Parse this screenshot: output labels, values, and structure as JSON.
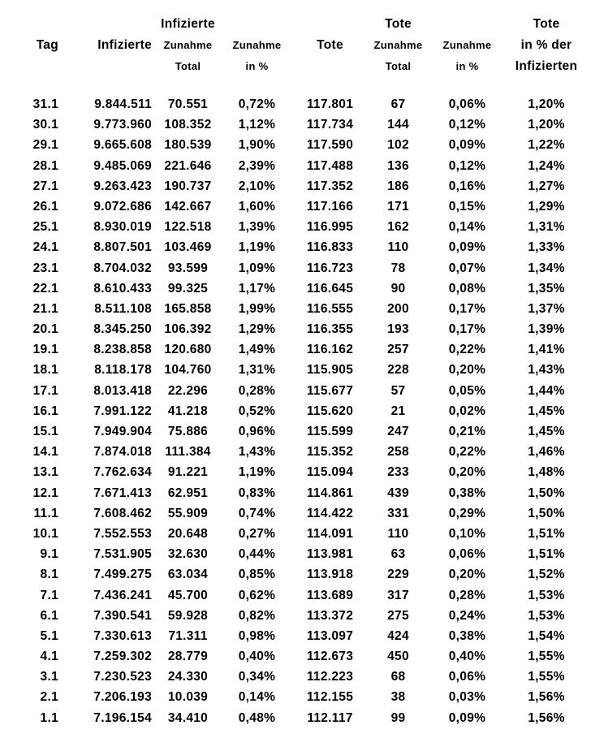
{
  "table": {
    "title_semantic": "covid-infections-deaths-by-day",
    "columns": [
      {
        "id": "tag",
        "header_lines": [
          "",
          "Tag",
          ""
        ]
      },
      {
        "id": "infizierte",
        "header_lines": [
          "",
          "Infizierte",
          ""
        ]
      },
      {
        "id": "infizierte-zunahme-total",
        "header_lines": [
          "Infizierte",
          "Zunahme",
          "Total"
        ]
      },
      {
        "id": "infizierte-zunahme-pct",
        "header_lines": [
          "",
          "Zunahme",
          "in %"
        ]
      },
      {
        "id": "tote",
        "header_lines": [
          "",
          "Tote",
          ""
        ]
      },
      {
        "id": "tote-zunahme-total",
        "header_lines": [
          "Tote",
          "Zunahme",
          "Total"
        ]
      },
      {
        "id": "tote-zunahme-pct",
        "header_lines": [
          "",
          "Zunahme",
          "in %"
        ]
      },
      {
        "id": "tote-pct-der-infizierten",
        "header_lines": [
          "Tote",
          "in % der",
          "Infizierten"
        ]
      }
    ],
    "rows": [
      [
        "31.1",
        "9.844.511",
        "70.551",
        "0,72%",
        "117.801",
        "67",
        "0,06%",
        "1,20%"
      ],
      [
        "30.1",
        "9.773.960",
        "108.352",
        "1,12%",
        "117.734",
        "144",
        "0,12%",
        "1,20%"
      ],
      [
        "29.1",
        "9.665.608",
        "180.539",
        "1,90%",
        "117.590",
        "102",
        "0,09%",
        "1,22%"
      ],
      [
        "28.1",
        "9.485.069",
        "221.646",
        "2,39%",
        "117.488",
        "136",
        "0,12%",
        "1,24%"
      ],
      [
        "27.1",
        "9.263.423",
        "190.737",
        "2,10%",
        "117.352",
        "186",
        "0,16%",
        "1,27%"
      ],
      [
        "26.1",
        "9.072.686",
        "142.667",
        "1,60%",
        "117.166",
        "171",
        "0,15%",
        "1,29%"
      ],
      [
        "25.1",
        "8.930.019",
        "122.518",
        "1,39%",
        "116.995",
        "162",
        "0,14%",
        "1,31%"
      ],
      [
        "24.1",
        "8.807.501",
        "103.469",
        "1,19%",
        "116.833",
        "110",
        "0,09%",
        "1,33%"
      ],
      [
        "23.1",
        "8.704.032",
        "93.599",
        "1,09%",
        "116.723",
        "78",
        "0,07%",
        "1,34%"
      ],
      [
        "22.1",
        "8.610.433",
        "99.325",
        "1,17%",
        "116.645",
        "90",
        "0,08%",
        "1,35%"
      ],
      [
        "21.1",
        "8.511.108",
        "165.858",
        "1,99%",
        "116.555",
        "200",
        "0,17%",
        "1,37%"
      ],
      [
        "20.1",
        "8.345.250",
        "106.392",
        "1,29%",
        "116.355",
        "193",
        "0,17%",
        "1,39%"
      ],
      [
        "19.1",
        "8.238.858",
        "120.680",
        "1,49%",
        "116.162",
        "257",
        "0,22%",
        "1,41%"
      ],
      [
        "18.1",
        "8.118.178",
        "104.760",
        "1,31%",
        "115.905",
        "228",
        "0,20%",
        "1,43%"
      ],
      [
        "17.1",
        "8.013.418",
        "22.296",
        "0,28%",
        "115.677",
        "57",
        "0,05%",
        "1,44%"
      ],
      [
        "16.1",
        "7.991.122",
        "41.218",
        "0,52%",
        "115.620",
        "21",
        "0,02%",
        "1,45%"
      ],
      [
        "15.1",
        "7.949.904",
        "75.886",
        "0,96%",
        "115.599",
        "247",
        "0,21%",
        "1,45%"
      ],
      [
        "14.1",
        "7.874.018",
        "111.384",
        "1,43%",
        "115.352",
        "258",
        "0,22%",
        "1,46%"
      ],
      [
        "13.1",
        "7.762.634",
        "91.221",
        "1,19%",
        "115.094",
        "233",
        "0,20%",
        "1,48%"
      ],
      [
        "12.1",
        "7.671.413",
        "62.951",
        "0,83%",
        "114.861",
        "439",
        "0,38%",
        "1,50%"
      ],
      [
        "11.1",
        "7.608.462",
        "55.909",
        "0,74%",
        "114.422",
        "331",
        "0,29%",
        "1,50%"
      ],
      [
        "10.1",
        "7.552.553",
        "20.648",
        "0,27%",
        "114.091",
        "110",
        "0,10%",
        "1,51%"
      ],
      [
        "9.1",
        "7.531.905",
        "32.630",
        "0,44%",
        "113.981",
        "63",
        "0,06%",
        "1,51%"
      ],
      [
        "8.1",
        "7.499.275",
        "63.034",
        "0,85%",
        "113.918",
        "229",
        "0,20%",
        "1,52%"
      ],
      [
        "7.1",
        "7.436.241",
        "45.700",
        "0,62%",
        "113.689",
        "317",
        "0,28%",
        "1,53%"
      ],
      [
        "6.1",
        "7.390.541",
        "59.928",
        "0,82%",
        "113.372",
        "275",
        "0,24%",
        "1,53%"
      ],
      [
        "5.1",
        "7.330.613",
        "71.311",
        "0,98%",
        "113.097",
        "424",
        "0,38%",
        "1,54%"
      ],
      [
        "4.1",
        "7.259.302",
        "28.779",
        "0,40%",
        "112.673",
        "450",
        "0,40%",
        "1,55%"
      ],
      [
        "3.1",
        "7.230.523",
        "24.330",
        "0,34%",
        "112.223",
        "68",
        "0,06%",
        "1,55%"
      ],
      [
        "2.1",
        "7.206.193",
        "10.039",
        "0,14%",
        "112.155",
        "38",
        "0,03%",
        "1,56%"
      ],
      [
        "1.1",
        "7.196.154",
        "34.410",
        "0,48%",
        "112.117",
        "99",
        "0,09%",
        "1,56%"
      ]
    ]
  }
}
